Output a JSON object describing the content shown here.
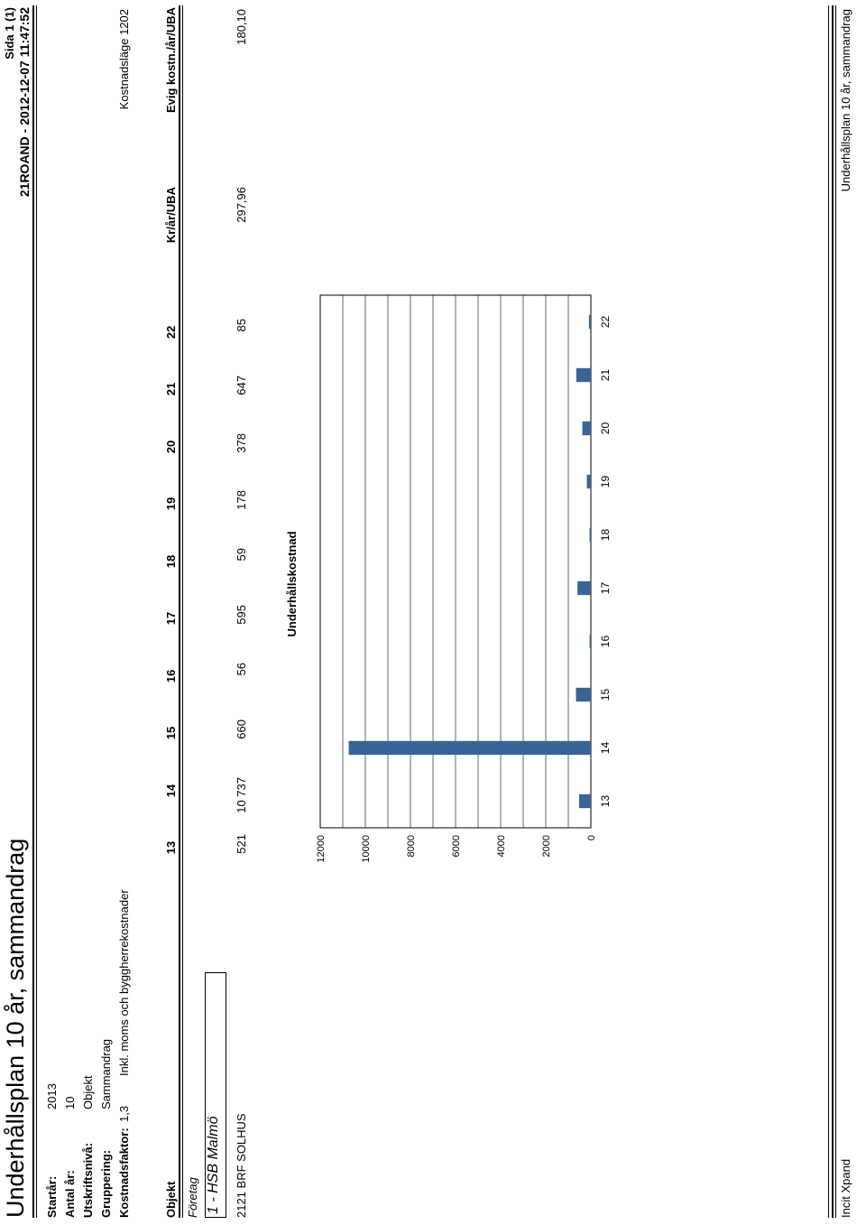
{
  "header": {
    "title": "Underhållsplan 10 år, sammandrag",
    "page": "Sida 1 (1)",
    "report_id": "21ROAND - 2012-12-07 11:47:52"
  },
  "meta": {
    "startar_label": "Startår:",
    "startar_value": "2013",
    "antal_label": "Antal år:",
    "antal_value": "10",
    "utskrift_label": "Utskriftsnivå:",
    "utskrift_value": "Objekt",
    "gruppering_label": "Gruppering:",
    "gruppering_value": "Sammandrag",
    "kostnadsfaktor_label": "Kostnadsfaktor:",
    "kostnadsfaktor_value": "1,3",
    "moms_note": "Inkl. moms och byggherrekostnader",
    "kostnadslage": "Kostnadsläge 1202"
  },
  "table": {
    "col_objekt": "Objekt",
    "years": [
      "13",
      "14",
      "15",
      "16",
      "17",
      "18",
      "19",
      "20",
      "21",
      "22"
    ],
    "col_krar": "Kr/år/UBA",
    "col_evig": "Evig kostn./år/UBA",
    "group_label": "Företag",
    "group_value": "1 - HSB Malmö",
    "row": {
      "name": "2121 BRF SOLHUS",
      "values": [
        "521",
        "10 737",
        "660",
        "56",
        "595",
        "59",
        "178",
        "378",
        "647",
        "85"
      ],
      "krar": "297,96",
      "evig": "180,10"
    }
  },
  "chart_data": {
    "type": "bar",
    "title": "Underhållskostnad",
    "categories": [
      "13",
      "14",
      "15",
      "16",
      "17",
      "18",
      "19",
      "20",
      "21",
      "22"
    ],
    "values": [
      521,
      10737,
      660,
      56,
      595,
      59,
      178,
      378,
      647,
      85
    ],
    "ylim": [
      0,
      12000
    ],
    "yticks": [
      "0",
      "2000",
      "4000",
      "6000",
      "8000",
      "10000",
      "12000"
    ],
    "grid": true,
    "bar_color": "#3a6396"
  },
  "footer": {
    "left": "Incit Xpand",
    "right": "Underhållsplan 10 år, sammandrag"
  }
}
